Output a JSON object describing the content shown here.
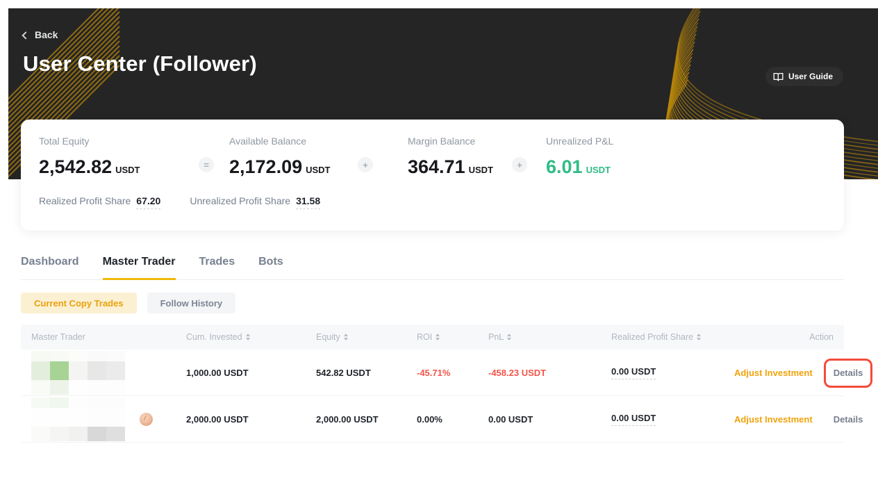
{
  "colors": {
    "banner_bg": "#252525",
    "accent_yellow": "#f0b90b",
    "link_orange": "#f0a30b",
    "positive_green": "#2ebd85",
    "negative_red": "#f2554a",
    "annotation_red": "#f54a3a",
    "gold_wave": "#b8860b"
  },
  "icons": {
    "back_chevron": "left-chevron",
    "user_guide_book": "open-book",
    "sort": "up-down-arrows",
    "equals": "=",
    "plus": "+"
  },
  "banner": {
    "back_label": "Back",
    "title": "User Center (Follower)",
    "user_guide_label": "User Guide"
  },
  "summary": {
    "stats": [
      {
        "label": "Total Equity",
        "value": "2,542.82",
        "unit": "USDT"
      },
      {
        "label": "Available Balance",
        "value": "2,172.09",
        "unit": "USDT"
      },
      {
        "label": "Margin Balance",
        "value": "364.71",
        "unit": "USDT"
      },
      {
        "label": "Unrealized P&L",
        "value": "6.01",
        "unit": "USDT",
        "positive": true
      }
    ],
    "operators": [
      "=",
      "+",
      "+"
    ],
    "profit_shares": [
      {
        "label": "Realized Profit Share",
        "value": "67.20"
      },
      {
        "label": "Unrealized Profit Share",
        "value": "31.58"
      }
    ]
  },
  "tabs": [
    {
      "label": "Dashboard",
      "active": false
    },
    {
      "label": "Master Trader",
      "active": true
    },
    {
      "label": "Trades",
      "active": false
    },
    {
      "label": "Bots",
      "active": false
    }
  ],
  "subtabs": [
    {
      "label": "Current Copy Trades",
      "active": true
    },
    {
      "label": "Follow History",
      "active": false
    }
  ],
  "table": {
    "columns": [
      {
        "label": "Master Trader",
        "sortable": false
      },
      {
        "label": "Cum. Invested",
        "sortable": true
      },
      {
        "label": "Equity",
        "sortable": true
      },
      {
        "label": "ROI",
        "sortable": true
      },
      {
        "label": "PnL",
        "sortable": true
      },
      {
        "label": "Realized Profit Share",
        "sortable": true
      },
      {
        "label": "Action",
        "sortable": false
      }
    ],
    "rows": [
      {
        "trader_name_masked": true,
        "mask_tiles": [
          [
            "#f6faf3",
            "#f7faf5",
            "#fcfcfb",
            "#fafafa",
            "#fbfbfb"
          ],
          [
            "#e3efdc",
            "#a7d494",
            "#f4f4f2",
            "#e7e7e7",
            "#ebebeb"
          ],
          [
            "#f8fbf6",
            "#eef3ea",
            "#fefefe",
            "#fdfdfd",
            "#fdfdfd"
          ]
        ],
        "has_badge": false,
        "cum_invested": "1,000.00 USDT",
        "equity": "542.82 USDT",
        "roi": "-45.71%",
        "pnl": "-458.23 USDT",
        "realized_profit_share": "0.00 USDT",
        "action_adjust": "Adjust Investment",
        "action_details": "Details",
        "details_highlighted": true
      },
      {
        "trader_name_masked": true,
        "mask_tiles": [
          [
            "#f6faf4",
            "#f0f7ec",
            "#fdfdfd",
            "#fcfcfc",
            "#fcfcfc"
          ],
          [
            "#fefefe",
            "#fefefe",
            "#fefefe",
            "#fdfdfd",
            "#fdfdfd"
          ],
          [
            "#fafaf9",
            "#f5f5f4",
            "#f1f1f0",
            "#d8d8d8",
            "#dfdfdf"
          ]
        ],
        "has_badge": true,
        "cum_invested": "2,000.00 USDT",
        "equity": "2,000.00 USDT",
        "roi": "0.00%",
        "pnl": "0.00 USDT",
        "realized_profit_share": "0.00 USDT",
        "action_adjust": "Adjust Investment",
        "action_details": "Details",
        "details_highlighted": false
      }
    ]
  }
}
